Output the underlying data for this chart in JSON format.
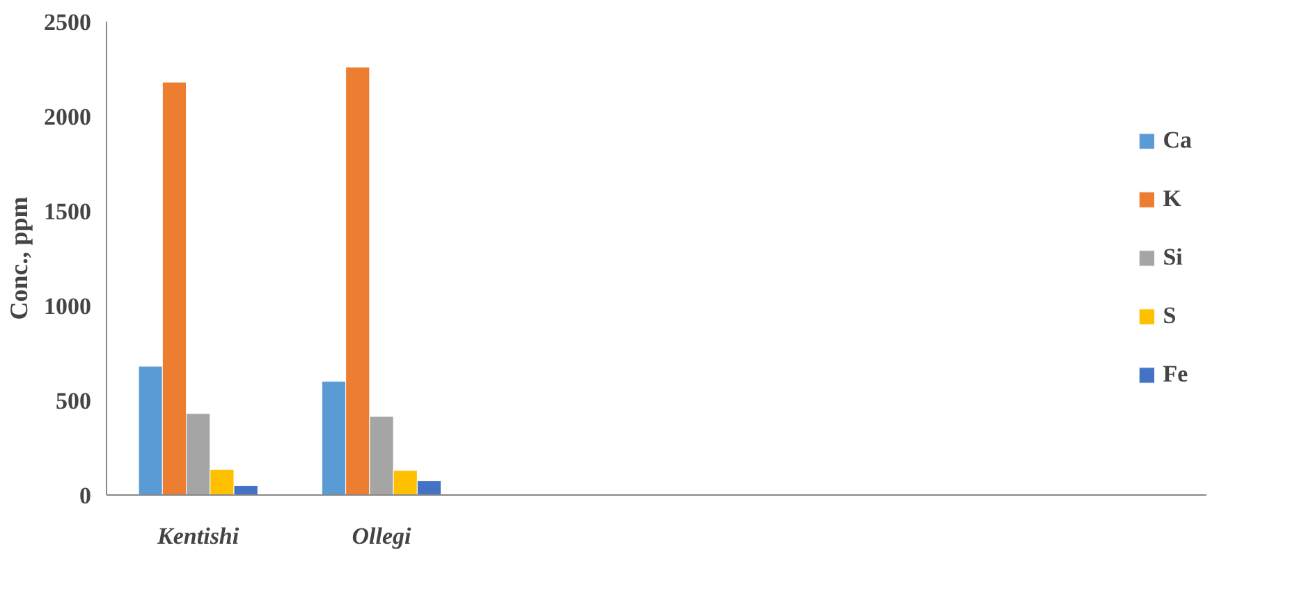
{
  "chart_data": {
    "type": "bar",
    "ylabel": "Conc., ppm",
    "categories": [
      "Kentishi",
      "Ollegi",
      null,
      null,
      null,
      null
    ],
    "series": [
      {
        "name": "Ca",
        "color": "#5b9bd5",
        "values": [
          680,
          600,
          null,
          null,
          null,
          null
        ]
      },
      {
        "name": "K",
        "color": "#ed7d31",
        "values": [
          2180,
          2260,
          null,
          null,
          null,
          null
        ]
      },
      {
        "name": "Si",
        "color": "#a5a5a5",
        "values": [
          430,
          415,
          null,
          null,
          null,
          null
        ]
      },
      {
        "name": "S",
        "color": "#ffc000",
        "values": [
          135,
          130,
          null,
          null,
          null,
          null
        ]
      },
      {
        "name": "Fe",
        "color": "#4472c4",
        "values": [
          50,
          75,
          null,
          null,
          null,
          null
        ]
      }
    ],
    "ylim": [
      0,
      2500
    ],
    "yticks": [
      0,
      500,
      1000,
      1500,
      2000,
      2500
    ],
    "grid": false,
    "legend": "right"
  }
}
